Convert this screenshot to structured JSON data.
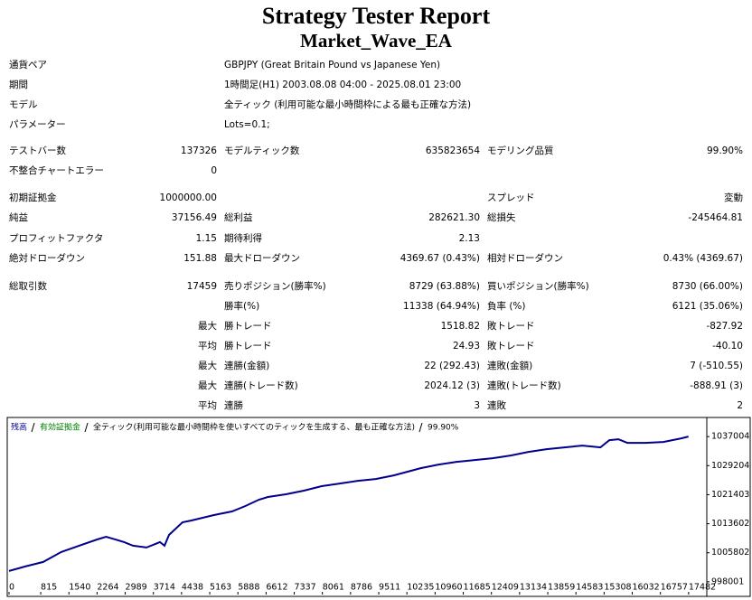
{
  "header": {
    "title": "Strategy Tester Report",
    "subtitle": "Market_Wave_EA"
  },
  "settings": [
    [
      "通貨ペア",
      "GBPJPY (Great Britain Pound vs Japanese Yen)"
    ],
    [
      "期間",
      "1時間足(H1) 2003.08.08 04:00 - 2025.08.01 23:00"
    ],
    [
      "モデル",
      "全ティック (利用可能な最小時間枠による最も正確な方法)"
    ],
    [
      "パラメーター",
      "Lots=0.1;"
    ]
  ],
  "stats": [
    [
      "テストバー数",
      "137326",
      "モデルティック数",
      "635823654",
      "モデリング品質",
      "99.90%"
    ],
    [
      "不整合チャートエラー",
      "0",
      null,
      null,
      null,
      null
    ],
    [
      "初期証拠金",
      "1000000.00",
      null,
      null,
      "スプレッド",
      "変動"
    ],
    [
      "純益",
      "37156.49",
      "総利益",
      "282621.30",
      "総損失",
      "-245464.81"
    ],
    [
      "プロフィットファクタ",
      "1.15",
      "期待利得",
      "2.13",
      null,
      null
    ],
    [
      "絶対ドローダウン",
      "151.88",
      "最大ドローダウン",
      "4369.67 (0.43%)",
      "相対ドローダウン",
      "0.43% (4369.67)"
    ],
    [
      "総取引数",
      "17459",
      "売りポジション(勝率%)",
      "8729 (63.88%)",
      "買いポジション(勝率%)",
      "8730 (66.00%)"
    ],
    [
      null,
      null,
      "勝率(%)",
      "11338 (64.94%)",
      "負率 (%)",
      "6121 (35.06%)"
    ],
    [
      null,
      "最大",
      "勝トレード",
      "1518.82",
      "敗トレード",
      "-827.92"
    ],
    [
      null,
      "平均",
      "勝トレード",
      "24.93",
      "敗トレード",
      "-40.10"
    ],
    [
      null,
      "最大",
      "連勝(金額)",
      "22 (292.43)",
      "連敗(金額)",
      "7 (-510.55)"
    ],
    [
      null,
      "最大",
      "連勝(トレード数)",
      "2024.12 (3)",
      "連敗(トレード数)",
      "-888.91 (3)"
    ],
    [
      null,
      "平均",
      "連勝",
      "3",
      "連敗",
      "2"
    ]
  ],
  "chart_data": {
    "type": "line",
    "series": [
      {
        "name": "残高",
        "color": "#00008b",
        "x": [
          0,
          416,
          879,
          1341,
          1803,
          2266,
          2497,
          2959,
          3191,
          3537,
          3884,
          4000,
          4115,
          4462,
          4693,
          5271,
          5734,
          6080,
          6427,
          6659,
          7121,
          7583,
          8046,
          8508,
          8971,
          9433,
          9895,
          10242,
          10589,
          11051,
          11514,
          11976,
          12439,
          12901,
          13363,
          13826,
          14288,
          14751,
          15213,
          15444,
          15675,
          15907,
          16369,
          16831,
          17294,
          17479
        ],
        "values": [
          1000909,
          1002120,
          1003332,
          1005997,
          1007693,
          1009389,
          1010116,
          1008662,
          1007693,
          1007208,
          1008662,
          1007693,
          1010601,
          1013993,
          1014477,
          1015931,
          1016900,
          1018354,
          1020050,
          1020777,
          1021504,
          1022473,
          1023685,
          1024412,
          1025139,
          1025623,
          1026592,
          1027562,
          1028531,
          1029500,
          1030227,
          1030712,
          1031196,
          1031923,
          1032892,
          1033619,
          1034104,
          1034588,
          1034104,
          1036042,
          1036285,
          1035316,
          1035316,
          1035558,
          1036527,
          1037012
        ]
      }
    ],
    "equity_label": {
      "text": "有効証拠金",
      "color": "#008000"
    },
    "model_label": "全ティック(利用可能な最小時間枠を使いすべてのティックを生成する、最も正確な方法)",
    "quality_label": "99.90%",
    "xlim": [
      0,
      17950
    ],
    "ylim": [
      995300,
      1041900
    ],
    "xticks": [
      0,
      815,
      1540,
      2264,
      2989,
      3714,
      4438,
      5163,
      5888,
      6612,
      7337,
      8061,
      8786,
      9511,
      10235,
      10960,
      11685,
      12409,
      13134,
      13859,
      14583,
      15308,
      16032,
      16757,
      17482
    ],
    "yticks": [
      998001,
      1005802,
      1013602,
      1021403,
      1029204,
      1037004
    ]
  }
}
